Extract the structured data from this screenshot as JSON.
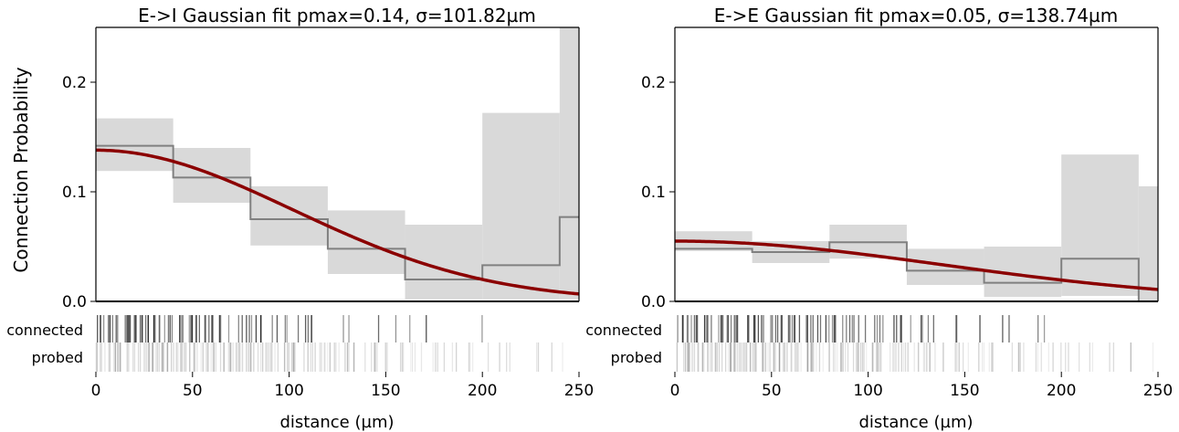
{
  "figure": {
    "shared_ylabel": "Connection Probability",
    "strip_labels": [
      "connected",
      "probed"
    ]
  },
  "chart_data": [
    {
      "type": "line",
      "title": "E->I Gaussian fit pmax=0.14, σ=101.82µm",
      "xlabel": "distance (µm)",
      "ylabel": "Connection Probability",
      "xlim": [
        0,
        250
      ],
      "ylim": [
        0,
        0.25
      ],
      "x_ticks": [
        0,
        50,
        100,
        150,
        200,
        250
      ],
      "y_ticks": [
        0.0,
        0.1,
        0.2
      ],
      "y_tick_labels": [
        "0.0",
        "0.1",
        "0.2"
      ],
      "grid": false,
      "fit": {
        "pmax": 0.138,
        "sigma": 101.82,
        "color": "#8b0000"
      },
      "bins": [
        {
          "x0": 0,
          "x1": 40,
          "p": 0.142,
          "ci": [
            0.119,
            0.167
          ]
        },
        {
          "x0": 40,
          "x1": 80,
          "p": 0.113,
          "ci": [
            0.09,
            0.14
          ]
        },
        {
          "x0": 80,
          "x1": 120,
          "p": 0.075,
          "ci": [
            0.051,
            0.105
          ]
        },
        {
          "x0": 120,
          "x1": 160,
          "p": 0.048,
          "ci": [
            0.025,
            0.083
          ]
        },
        {
          "x0": 160,
          "x1": 200,
          "p": 0.02,
          "ci": [
            0.002,
            0.07
          ]
        },
        {
          "x0": 200,
          "x1": 240,
          "p": 0.033,
          "ci": [
            0.002,
            0.172
          ]
        },
        {
          "x0": 240,
          "x1": 250,
          "p": 0.077,
          "ci": [
            0.002,
            0.25
          ]
        }
      ],
      "strip_density": {
        "connected": [
          0.55,
          0.65,
          0.7,
          0.6,
          0.55,
          0.5,
          0.35,
          0.3,
          0.35,
          0.25,
          0.2,
          0.15,
          0.08,
          0.1,
          0.05,
          0.08,
          0.05,
          0.06,
          0.03,
          0.04,
          0.02,
          0.0,
          0.01,
          0.0,
          0.0
        ],
        "probed": [
          0.3,
          0.32,
          0.33,
          0.33,
          0.32,
          0.31,
          0.3,
          0.28,
          0.26,
          0.24,
          0.22,
          0.2,
          0.18,
          0.16,
          0.14,
          0.12,
          0.11,
          0.1,
          0.08,
          0.07,
          0.06,
          0.05,
          0.04,
          0.03,
          0.03
        ]
      }
    },
    {
      "type": "line",
      "title": "E->E Gaussian fit pmax=0.05, σ=138.74µm",
      "xlabel": "distance (µm)",
      "ylabel": "",
      "xlim": [
        0,
        250
      ],
      "ylim": [
        0,
        0.25
      ],
      "x_ticks": [
        0,
        50,
        100,
        150,
        200,
        250
      ],
      "y_ticks": [
        0.0,
        0.1,
        0.2
      ],
      "y_tick_labels": [
        "0.0",
        "0.1",
        "0.2"
      ],
      "grid": false,
      "fit": {
        "pmax": 0.055,
        "sigma": 138.74,
        "color": "#8b0000"
      },
      "bins": [
        {
          "x0": 0,
          "x1": 40,
          "p": 0.048,
          "ci": [
            0.046,
            0.064
          ]
        },
        {
          "x0": 40,
          "x1": 80,
          "p": 0.045,
          "ci": [
            0.035,
            0.055
          ]
        },
        {
          "x0": 80,
          "x1": 120,
          "p": 0.054,
          "ci": [
            0.039,
            0.07
          ]
        },
        {
          "x0": 120,
          "x1": 160,
          "p": 0.028,
          "ci": [
            0.015,
            0.048
          ]
        },
        {
          "x0": 160,
          "x1": 200,
          "p": 0.017,
          "ci": [
            0.004,
            0.05
          ]
        },
        {
          "x0": 200,
          "x1": 240,
          "p": 0.039,
          "ci": [
            0.005,
            0.134
          ]
        },
        {
          "x0": 240,
          "x1": 250,
          "p": 0.0,
          "ci": [
            0.0,
            0.105
          ]
        }
      ],
      "strip_density": {
        "connected": [
          0.5,
          0.6,
          0.6,
          0.55,
          0.5,
          0.5,
          0.45,
          0.4,
          0.45,
          0.35,
          0.3,
          0.25,
          0.2,
          0.15,
          0.12,
          0.1,
          0.08,
          0.06,
          0.05,
          0.05,
          0.03,
          0.02,
          0.02,
          0.01,
          0.0
        ],
        "probed": [
          0.3,
          0.31,
          0.32,
          0.32,
          0.31,
          0.3,
          0.29,
          0.27,
          0.26,
          0.24,
          0.22,
          0.2,
          0.18,
          0.16,
          0.14,
          0.13,
          0.11,
          0.1,
          0.09,
          0.08,
          0.07,
          0.06,
          0.05,
          0.04,
          0.03
        ]
      }
    }
  ]
}
